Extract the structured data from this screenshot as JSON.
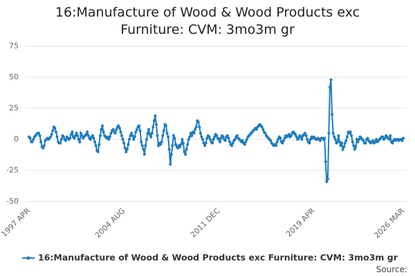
{
  "chart_data": {
    "type": "line",
    "title": "16:Manufacture of Wood & Wood Products exc Furniture: CVM: 3mo3m gr",
    "source": "Source:",
    "categories": [
      "1997 APR",
      null,
      null,
      null,
      null,
      null,
      null,
      null,
      null,
      null,
      null,
      null,
      null,
      null,
      null,
      null,
      null,
      null,
      null,
      null,
      null,
      null,
      null,
      null,
      null,
      null,
      null,
      null,
      null,
      null,
      null,
      null,
      null,
      null,
      null,
      null,
      null,
      null,
      null,
      null,
      null,
      null,
      null,
      null,
      null,
      null,
      null,
      null,
      null,
      null,
      null,
      null,
      null,
      null,
      null,
      null,
      null,
      null,
      null,
      null,
      null,
      null,
      null,
      null,
      null,
      null,
      null,
      null,
      null,
      null,
      null,
      null,
      null,
      null,
      null,
      null,
      null,
      null,
      null,
      null,
      null,
      null,
      null,
      null,
      null,
      null,
      null,
      null,
      "2004 AUG",
      null,
      null,
      null,
      null,
      null,
      null,
      null,
      null,
      null,
      null,
      null,
      null,
      null,
      null,
      null,
      null,
      null,
      null,
      null,
      null,
      null,
      null,
      null,
      null,
      null,
      null,
      null,
      null,
      null,
      null,
      null,
      null,
      null,
      null,
      null,
      null,
      null,
      null,
      null,
      null,
      null,
      null,
      null,
      null,
      null,
      null,
      null,
      null,
      null,
      null,
      null,
      null,
      null,
      null,
      null,
      null,
      null,
      null,
      null,
      null,
      null,
      null,
      null,
      null,
      null,
      null,
      null,
      null,
      null,
      null,
      null,
      null,
      null,
      null,
      null,
      null,
      null,
      null,
      null,
      null,
      null,
      null,
      null,
      null,
      null,
      null,
      null,
      "2011 DEC",
      null,
      null,
      null,
      null,
      null,
      null,
      null,
      null,
      null,
      null,
      null,
      null,
      null,
      null,
      null,
      null,
      null,
      null,
      null,
      null,
      null,
      null,
      null,
      null,
      null,
      null,
      null,
      null,
      null,
      null,
      null,
      null,
      null,
      null,
      null,
      null,
      null,
      null,
      null,
      null,
      null,
      null,
      null,
      null,
      null,
      null,
      null,
      null,
      null,
      null,
      null,
      null,
      null,
      null,
      null,
      null,
      null,
      null,
      null,
      null,
      null,
      null,
      null,
      null,
      null,
      null,
      null,
      null,
      null,
      null,
      null,
      null,
      null,
      null,
      null,
      null,
      null,
      null,
      null,
      null,
      null,
      null,
      null,
      null,
      null,
      null,
      null,
      "2019 APR",
      null,
      null,
      null,
      null,
      null,
      null,
      null,
      null,
      null,
      null,
      null,
      null,
      null,
      null,
      null,
      null,
      null,
      null,
      null,
      null,
      null,
      null,
      null,
      null,
      null,
      null,
      null,
      null,
      null,
      null,
      null,
      null,
      null,
      null,
      null,
      null,
      null,
      null,
      null,
      null,
      null,
      null,
      null,
      null,
      null,
      null,
      null,
      null,
      null,
      null,
      null,
      null,
      null,
      null,
      null,
      null,
      null,
      null,
      null,
      null,
      null,
      null,
      null,
      null,
      null,
      null,
      null,
      null,
      null,
      null,
      null,
      null,
      null,
      null,
      null,
      null,
      null,
      null,
      null,
      null,
      null,
      null,
      "2026 MAR"
    ],
    "series": [
      {
        "name": "16:Manufacture of Wood & Wood Products exc Furniture: CVM: 3mo3m gr",
        "color": "#1f7bbf",
        "values": [
          2,
          1,
          -2,
          -2,
          0,
          2,
          3,
          4,
          5,
          5,
          3,
          -2,
          -6,
          -7,
          -5,
          -1,
          0,
          1,
          0,
          1,
          2,
          4,
          7,
          10,
          9,
          6,
          2,
          -2,
          -3,
          -3,
          0,
          3,
          2,
          0,
          -1,
          2,
          1,
          0,
          1,
          4,
          6,
          2,
          1,
          3,
          5,
          3,
          0,
          -2,
          5,
          3,
          1,
          2,
          3,
          4,
          6,
          3,
          1,
          0,
          2,
          3,
          1,
          -2,
          -5,
          -9,
          -10,
          -4,
          3,
          8,
          11,
          6,
          3,
          2,
          1,
          2,
          0,
          2,
          5,
          7,
          8,
          6,
          5,
          8,
          10,
          11,
          9,
          6,
          3,
          0,
          -3,
          -7,
          -10,
          -8,
          -4,
          0,
          3,
          5,
          3,
          0,
          2,
          6,
          8,
          10,
          11,
          7,
          -2,
          -5,
          -8,
          -12,
          -5,
          0,
          5,
          8,
          4,
          2,
          5,
          10,
          15,
          19,
          12,
          3,
          -5,
          -3,
          -4,
          -2,
          3,
          7,
          12,
          11,
          5,
          2,
          -8,
          -20,
          -12,
          -5,
          3,
          1,
          -4,
          -6,
          -7,
          -5,
          -6,
          -4,
          0,
          -3,
          -10,
          -12,
          -8,
          -4,
          0,
          2,
          5,
          3,
          6,
          5,
          8,
          10,
          15,
          14,
          10,
          5,
          2,
          0,
          -3,
          -5,
          -3,
          1,
          3,
          2,
          0,
          -2,
          -3,
          0,
          2,
          4,
          3,
          1,
          0,
          -2,
          1,
          3,
          2,
          0,
          -1,
          2,
          3,
          1,
          -2,
          -4,
          -5,
          -3,
          -1,
          0,
          2,
          3,
          1,
          0,
          -1,
          -2,
          -1,
          -3,
          -4,
          -2,
          0,
          2,
          3,
          4,
          5,
          6,
          7,
          8,
          9,
          8,
          10,
          11,
          12,
          11,
          10,
          8,
          6,
          5,
          3,
          2,
          1,
          0,
          -1,
          -3,
          -4,
          -5,
          -4,
          -5,
          -2,
          0,
          2,
          1,
          -2,
          -3,
          -1,
          1,
          3,
          2,
          3,
          4,
          2,
          3,
          5,
          6,
          5,
          4,
          2,
          0,
          1,
          3,
          2,
          0,
          3,
          4,
          5,
          3,
          0,
          -2,
          -3,
          0,
          2,
          1,
          2,
          1,
          0,
          0,
          1,
          0,
          -1,
          1,
          1,
          0,
          1,
          -18,
          -34,
          -32,
          5,
          42,
          48,
          20,
          5,
          2,
          0,
          -3,
          -2,
          3,
          -2,
          -5,
          -3,
          -8,
          -6,
          -3,
          -1,
          2,
          6,
          5,
          6,
          3,
          -2,
          -5,
          -8,
          -6,
          0,
          -2,
          0,
          2,
          1,
          0,
          -1,
          -3,
          -3,
          0,
          1,
          -1,
          -2,
          -3,
          -2,
          -1,
          -3,
          -2,
          0,
          -2,
          -1,
          0,
          1,
          2,
          2,
          0,
          1,
          3,
          2,
          1,
          0,
          3,
          -2,
          -3,
          -1,
          0,
          -1,
          0,
          0,
          -1,
          0,
          0,
          -1,
          1
        ]
      }
    ],
    "ylim": [
      -50,
      75
    ],
    "yticks": [
      -50,
      -25,
      0,
      25,
      50,
      75
    ],
    "grid": true
  }
}
